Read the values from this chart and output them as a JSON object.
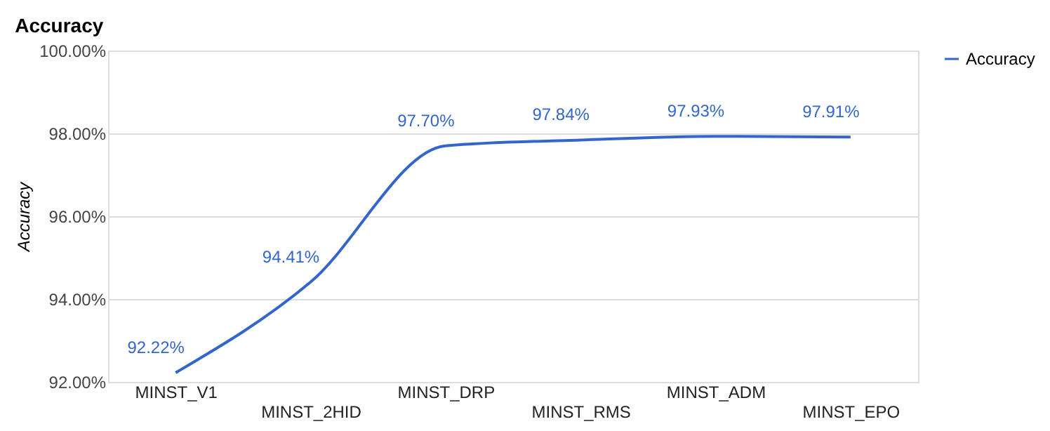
{
  "chart_data": {
    "type": "line",
    "title": "Accuracy",
    "ylabel": "Accuracy",
    "categories": [
      "MINST_V1",
      "MINST_2HID",
      "MINST_DRP",
      "MINST_RMS",
      "MINST_ADM",
      "MINST_EPO"
    ],
    "series": [
      {
        "name": "Accuracy",
        "color": "#3366cc",
        "values": [
          92.22,
          94.41,
          97.7,
          97.84,
          97.93,
          97.91
        ]
      }
    ],
    "ylim": [
      92,
      100
    ],
    "yticks": [
      {
        "value": 92,
        "label": "92.00%"
      },
      {
        "value": 94,
        "label": "94.00%"
      },
      {
        "value": 96,
        "label": "96.00%"
      },
      {
        "value": 98,
        "label": "98.00%"
      },
      {
        "value": 100,
        "label": "100.00%"
      }
    ],
    "value_labels": [
      "92.22%",
      "94.41%",
      "97.70%",
      "97.84%",
      "97.93%",
      "97.91%"
    ],
    "grid": "y",
    "legend": "right",
    "marker": "none",
    "line_style": "solid"
  }
}
